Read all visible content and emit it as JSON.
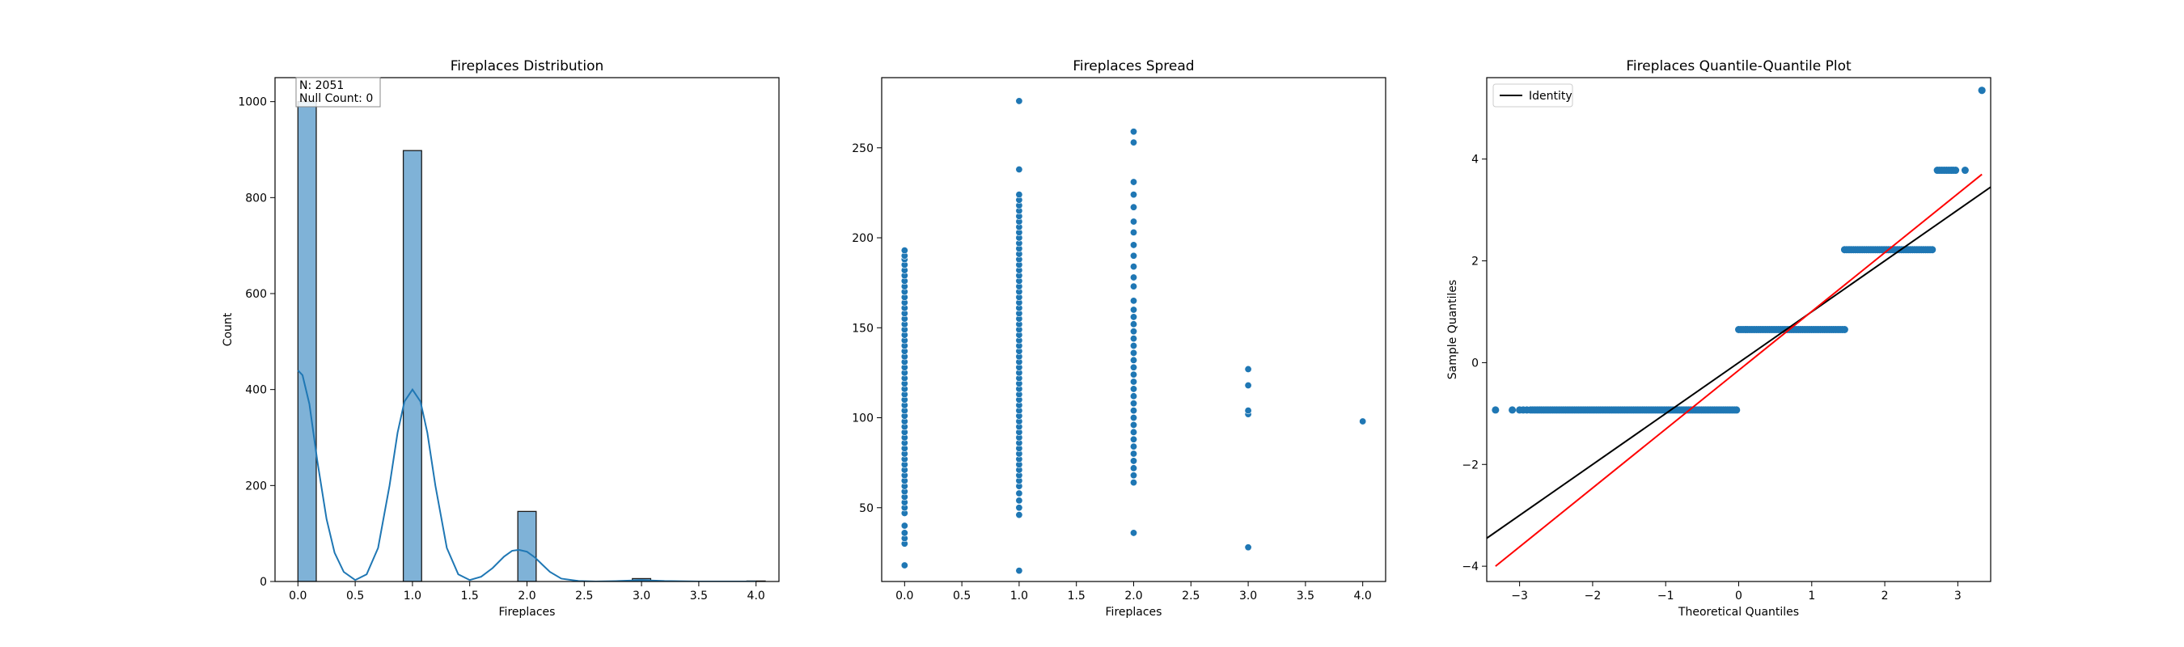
{
  "colors": {
    "bar": "#7fb2d7",
    "bar_edge": "#1a1a1a",
    "series": "#1f77b4",
    "identity": "#000000",
    "fit": "#ff0000",
    "axes": "#000000"
  },
  "chart_data": [
    {
      "type": "bar",
      "title": "Fireplaces Distribution",
      "xlabel": "Fireplaces",
      "ylabel": "Count",
      "xlim": [
        -0.2,
        4.2
      ],
      "ylim": [
        0,
        1050
      ],
      "xticks": [
        0.0,
        0.5,
        1.0,
        1.5,
        2.0,
        2.5,
        3.0,
        3.5,
        4.0
      ],
      "xtick_labels": [
        "0.0",
        "0.5",
        "1.0",
        "1.5",
        "2.0",
        "2.5",
        "3.0",
        "3.5",
        "4.0"
      ],
      "yticks": [
        0,
        200,
        400,
        600,
        800,
        1000
      ],
      "ytick_labels": [
        "0",
        "200",
        "400",
        "600",
        "800",
        "1000"
      ],
      "bars": [
        {
          "x0": 0.0,
          "x1": 0.16,
          "value": 1000
        },
        {
          "x0": 0.92,
          "x1": 1.08,
          "value": 898
        },
        {
          "x0": 1.92,
          "x1": 2.08,
          "value": 146
        },
        {
          "x0": 2.92,
          "x1": 3.08,
          "value": 6
        },
        {
          "x0": 3.92,
          "x1": 4.08,
          "value": 1
        }
      ],
      "kde": {
        "x": [
          0.0,
          0.04,
          0.1,
          0.17,
          0.25,
          0.32,
          0.4,
          0.5,
          0.6,
          0.7,
          0.8,
          0.87,
          0.93,
          1.0,
          1.07,
          1.13,
          1.2,
          1.3,
          1.4,
          1.5,
          1.6,
          1.7,
          1.8,
          1.87,
          1.93,
          2.0,
          2.07,
          2.13,
          2.2,
          2.3,
          2.45,
          2.6,
          2.8,
          2.9,
          3.0,
          3.1,
          3.2,
          3.5,
          3.9,
          4.0
        ],
        "y": [
          440,
          430,
          370,
          250,
          130,
          60,
          20,
          3,
          15,
          70,
          200,
          310,
          375,
          400,
          375,
          310,
          200,
          70,
          15,
          3,
          10,
          28,
          52,
          64,
          66,
          62,
          50,
          36,
          20,
          6,
          1,
          0,
          1,
          2,
          3,
          2,
          1,
          0,
          0,
          0
        ]
      },
      "annotation": [
        "N: 2051",
        "Null Count: 0"
      ]
    },
    {
      "type": "scatter",
      "title": "Fireplaces Spread",
      "xlabel": "Fireplaces",
      "ylabel": "",
      "xlim": [
        -0.2,
        4.2
      ],
      "ylim": [
        9,
        289
      ],
      "xticks": [
        0.0,
        0.5,
        1.0,
        1.5,
        2.0,
        2.5,
        3.0,
        3.5,
        4.0
      ],
      "xtick_labels": [
        "0.0",
        "0.5",
        "1.0",
        "1.5",
        "2.0",
        "2.5",
        "3.0",
        "3.5",
        "4.0"
      ],
      "yticks": [
        50,
        100,
        150,
        200,
        250
      ],
      "ytick_labels": [
        "50",
        "100",
        "150",
        "200",
        "250"
      ],
      "points": [
        {
          "x": 0,
          "y": [
            18,
            30,
            33,
            36,
            40,
            47,
            50,
            53,
            56,
            59,
            62,
            65,
            68,
            71,
            74,
            77,
            80,
            83,
            86,
            89,
            92,
            95,
            98,
            101,
            104,
            107,
            110,
            113,
            116,
            119,
            122,
            125,
            128,
            131,
            134,
            137,
            140,
            143,
            146,
            149,
            152,
            155,
            158,
            161,
            164,
            167,
            170,
            173,
            176,
            179,
            182,
            185,
            188,
            190,
            193
          ]
        },
        {
          "x": 1,
          "y": [
            15,
            46,
            50,
            54,
            58,
            62,
            65,
            68,
            71,
            74,
            77,
            80,
            83,
            86,
            89,
            92,
            95,
            98,
            101,
            104,
            107,
            110,
            113,
            116,
            119,
            122,
            125,
            128,
            131,
            134,
            137,
            140,
            143,
            146,
            149,
            152,
            155,
            158,
            161,
            164,
            167,
            170,
            173,
            176,
            179,
            182,
            185,
            188,
            191,
            194,
            197,
            200,
            203,
            206,
            209,
            212,
            215,
            218,
            221,
            224,
            238,
            276
          ]
        },
        {
          "x": 2,
          "y": [
            36,
            64,
            68,
            72,
            76,
            80,
            84,
            88,
            92,
            96,
            100,
            104,
            108,
            112,
            116,
            120,
            124,
            128,
            132,
            136,
            140,
            144,
            148,
            152,
            156,
            160,
            165,
            173,
            178,
            184,
            190,
            196,
            203,
            209,
            217,
            224,
            231,
            253,
            259
          ]
        },
        {
          "x": 3,
          "y": [
            28,
            102,
            104,
            118,
            127
          ]
        },
        {
          "x": 4,
          "y": [
            98
          ]
        }
      ]
    },
    {
      "type": "scatter",
      "title": "Fireplaces Quantile-Quantile Plot",
      "xlabel": "Theoretical Quantiles",
      "ylabel": "Sample Quantiles",
      "xlim": [
        -3.45,
        3.45
      ],
      "ylim": [
        -4.3,
        5.6
      ],
      "xticks": [
        -3,
        -2,
        -1,
        0,
        1,
        2,
        3
      ],
      "xtick_labels": [
        "−3",
        "−2",
        "−1",
        "0",
        "1",
        "2",
        "3"
      ],
      "yticks": [
        -4,
        -2,
        0,
        2,
        4
      ],
      "ytick_labels": [
        "−4",
        "−2",
        "0",
        "2",
        "4"
      ],
      "legend": {
        "position": "top-left",
        "entries": [
          "Identity"
        ]
      },
      "groups": [
        {
          "y": -0.93,
          "x_min": -2.85,
          "x_max": -0.03,
          "extra_x": [
            -3.33,
            -3.1,
            -3.0,
            -2.95,
            -2.9
          ]
        },
        {
          "y": 0.65,
          "x_min": 0.0,
          "x_max": 1.45,
          "extra_x": []
        },
        {
          "y": 2.22,
          "x_min": 1.45,
          "x_max": 2.65,
          "extra_x": []
        },
        {
          "y": 3.78,
          "x_min": 2.72,
          "x_max": 2.97,
          "extra_x": [
            3.1
          ]
        },
        {
          "y": 5.35,
          "x_min": 3.33,
          "x_max": 3.33,
          "extra_x": []
        }
      ],
      "lines": [
        {
          "name": "Identity",
          "points": [
            [
              -3.45,
              -3.45
            ],
            [
              3.45,
              3.45
            ]
          ]
        },
        {
          "name": "",
          "points": [
            [
              -3.33,
              -4.0
            ],
            [
              3.33,
              3.7
            ]
          ]
        }
      ]
    }
  ]
}
